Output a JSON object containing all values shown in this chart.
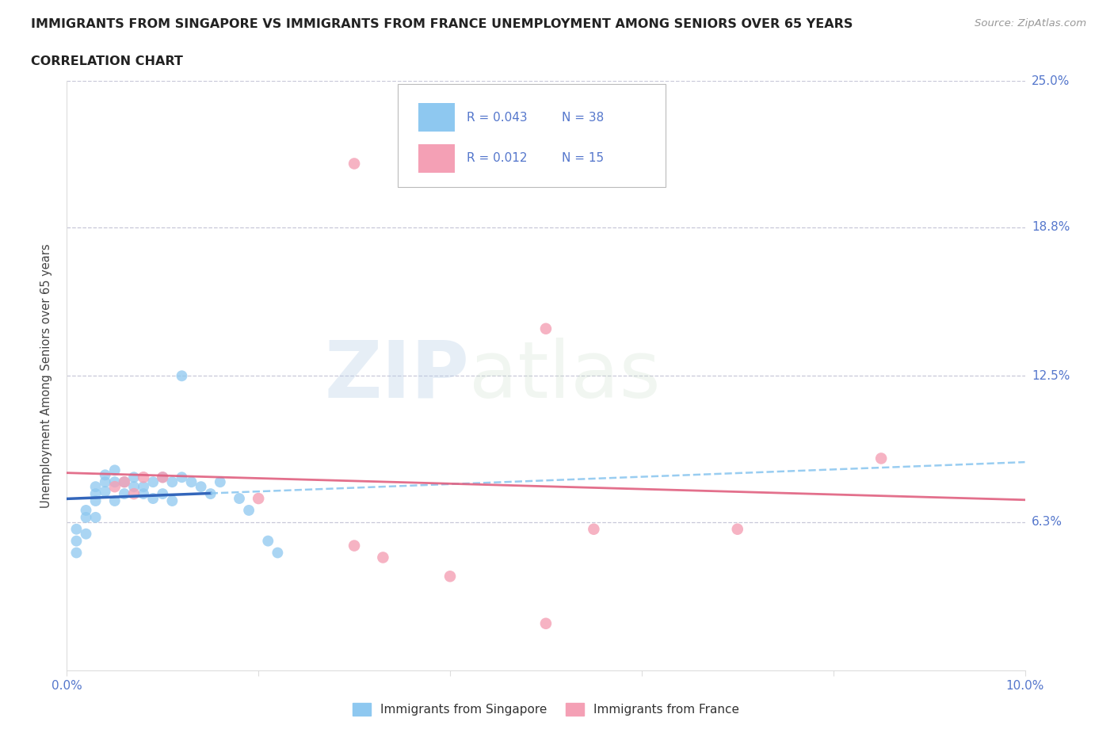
{
  "title_line1": "IMMIGRANTS FROM SINGAPORE VS IMMIGRANTS FROM FRANCE UNEMPLOYMENT AMONG SENIORS OVER 65 YEARS",
  "title_line2": "CORRELATION CHART",
  "source": "Source: ZipAtlas.com",
  "ylabel": "Unemployment Among Seniors over 65 years",
  "xlim": [
    0.0,
    0.1
  ],
  "ylim": [
    0.0,
    0.25
  ],
  "xticks": [
    0.0,
    0.02,
    0.04,
    0.06,
    0.08,
    0.1
  ],
  "xticklabels": [
    "0.0%",
    "",
    "",
    "",
    "",
    "10.0%"
  ],
  "ytick_values": [
    0.0,
    0.063,
    0.125,
    0.188,
    0.25
  ],
  "ytick_labels": [
    "",
    "6.3%",
    "12.5%",
    "18.8%",
    "25.0%"
  ],
  "grid_color": "#cccccc",
  "watermark_zip": "ZIP",
  "watermark_atlas": "atlas",
  "legend_r_singapore": "0.043",
  "legend_n_singapore": "38",
  "legend_r_france": "0.012",
  "legend_n_france": "15",
  "color_singapore": "#8EC8F0",
  "color_france": "#F4A0B5",
  "color_trendline_singapore_dashed": "#8EC8F0",
  "color_trendline_singapore_solid": "#3366BB",
  "color_trendline_france": "#E06080",
  "title_color": "#222222",
  "tick_label_color": "#5577cc",
  "singapore_x": [
    0.001,
    0.001,
    0.001,
    0.002,
    0.002,
    0.002,
    0.003,
    0.003,
    0.003,
    0.003,
    0.004,
    0.004,
    0.004,
    0.005,
    0.005,
    0.005,
    0.006,
    0.006,
    0.007,
    0.007,
    0.008,
    0.008,
    0.009,
    0.009,
    0.01,
    0.01,
    0.011,
    0.011,
    0.012,
    0.013,
    0.014,
    0.015,
    0.016,
    0.018,
    0.019,
    0.021,
    0.022,
    0.012
  ],
  "singapore_y": [
    0.06,
    0.055,
    0.05,
    0.065,
    0.068,
    0.058,
    0.072,
    0.075,
    0.078,
    0.065,
    0.08,
    0.083,
    0.076,
    0.085,
    0.08,
    0.072,
    0.08,
    0.075,
    0.082,
    0.078,
    0.078,
    0.075,
    0.08,
    0.073,
    0.082,
    0.075,
    0.08,
    0.072,
    0.082,
    0.08,
    0.078,
    0.075,
    0.08,
    0.073,
    0.068,
    0.055,
    0.05,
    0.125
  ],
  "france_x": [
    0.005,
    0.006,
    0.007,
    0.008,
    0.01,
    0.02,
    0.03,
    0.033,
    0.04,
    0.05,
    0.055,
    0.07,
    0.03,
    0.05,
    0.085
  ],
  "france_y": [
    0.078,
    0.08,
    0.075,
    0.082,
    0.082,
    0.073,
    0.053,
    0.048,
    0.04,
    0.02,
    0.06,
    0.06,
    0.215,
    0.145,
    0.09
  ]
}
